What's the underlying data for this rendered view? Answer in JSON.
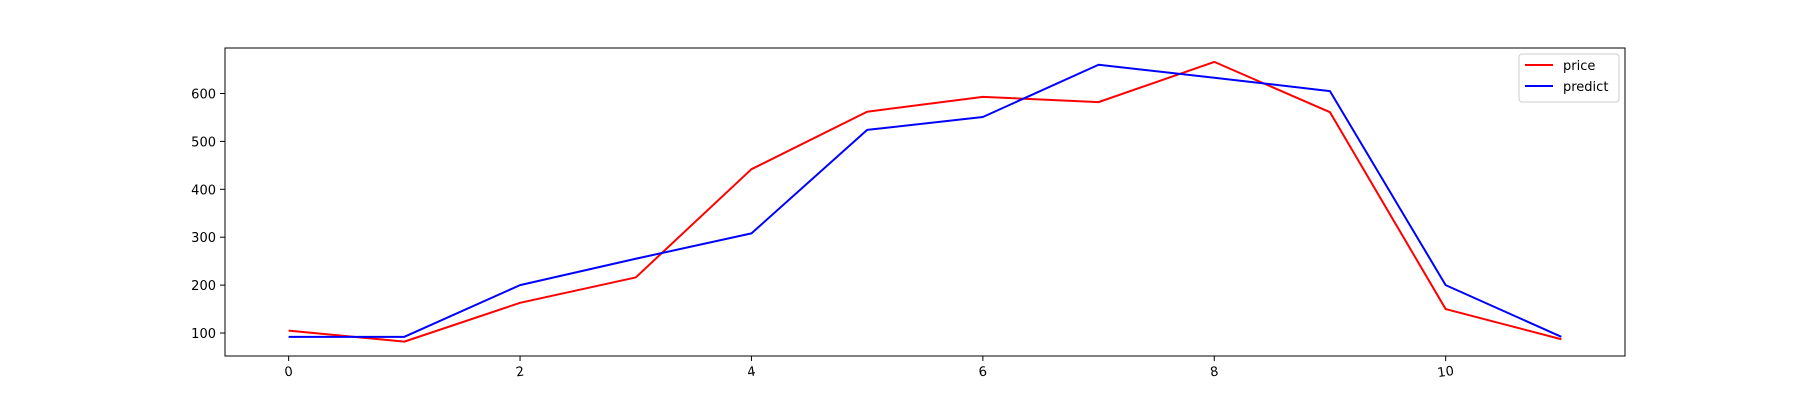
{
  "chart_data": {
    "type": "line",
    "title": "",
    "xlabel": "",
    "ylabel": "",
    "x": [
      0,
      1,
      2,
      3,
      4,
      5,
      6,
      7,
      8,
      9,
      10,
      11
    ],
    "xlim": [
      -0.55,
      11.55
    ],
    "ylim": [
      52,
      695
    ],
    "xticks": [
      0,
      2,
      4,
      6,
      8,
      10
    ],
    "xtick_labels": [
      "0",
      "2",
      "4",
      "6",
      "8",
      "10"
    ],
    "yticks": [
      100,
      200,
      300,
      400,
      500,
      600
    ],
    "ytick_labels": [
      "100",
      "200",
      "300",
      "400",
      "500",
      "600"
    ],
    "grid": false,
    "legend_position": "upper right",
    "series": [
      {
        "name": "price",
        "color": "#ff0000",
        "values": [
          105,
          82,
          163,
          216,
          442,
          562,
          593,
          582,
          666,
          561,
          150,
          87
        ]
      },
      {
        "name": "predict",
        "color": "#0000ff",
        "values": [
          92,
          92,
          200,
          255,
          308,
          524,
          551,
          660,
          633,
          605,
          200,
          92
        ]
      }
    ]
  }
}
